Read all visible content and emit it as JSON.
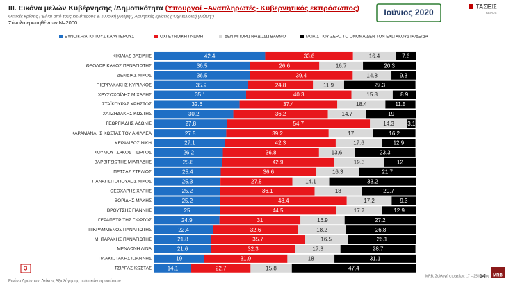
{
  "header": {
    "title": "III. Εικόνα μελών Κυβέρνησης /Δημοτικότητα",
    "title_highlight": "(Υπουργοί –Αναπληρωτές- Κυβερνητικός εκπρόσωπος)",
    "subtitle": "Θετικές κρίσεις (\"Είναι από τους καλύτερους & ευνοϊκή γνώμη\") Αρνητικές κρίσεις (\"Όχι ευνοϊκή γνώμη\")",
    "sample": "Σύνολο ερωτηθέντων N=2000",
    "date": "Ιούνιος 2020",
    "logo": "ΤΑΣΕΙΣ",
    "logo_sub": "TRENDS"
  },
  "footer": {
    "section": "3",
    "caption": "Εικόνα Δρώντων: Δείκτες Αξιολόγησης πολιτικών προσώπων",
    "source": "MRB, Συλλογή στοιχείων: 17 – 25 Ιουνίου 2020",
    "page": "14",
    "brand": "MRB"
  },
  "chart_data": {
    "type": "stacked-bar-horizontal",
    "xlim": [
      0,
      100
    ],
    "categories": [
      "ΚΙΚΙΛΙΑΣ ΒΑΣΙΛΗΣ",
      "ΘΕΟΔΩΡΙΚΑΚΟΣ ΠΑΝΑΓΙΩΤΗΣ",
      "ΔΕΝΔΙΑΣ ΝΙΚΟΣ",
      "ΠΙΕΡΡΑΚΑΚΗΣ ΚΥΡΙΑΚΟΣ",
      "ΧΡΥΣΟΧΟΪΔΗΣ ΜΙΧΑΛΗΣ",
      "ΣΤΑΪΚΟΥΡΑΣ ΧΡΗΣΤΟΣ",
      "ΧΑΤΖΗΔΑΚΗΣ ΚΩΣΤΗΣ",
      "ΓΕΩΡΓΙΑΔΗΣ ΑΔΩΝΙΣ",
      "ΚΑΡΑΜΑΝΛΗΣ ΚΩΣΤΑΣ ΤΟΥ ΑΧΙΛΛΕΑ",
      "ΚΕΡΑΜΕΩΣ ΝΙΚΗ",
      "ΚΟΥΜΟΥΤΣΑΚΟΣ ΓΙΩΡΓΟΣ",
      "ΒΑΡΒΙΤΣΙΩΤΗΣ ΜΙΛΤΙΑΔΗΣ",
      "ΠΕΤΣΑΣ ΣΤΕΛΙΟΣ",
      "ΠΑΝΑΓΙΩΤΟΠΟΥΛΟΣ ΝΙΚΟΣ",
      "ΘΕΟΧΑΡΗΣ ΧΑΡΗΣ",
      "ΒΟΡΙΔΗΣ ΜΑΚΗΣ",
      "ΒΡΟΥΤΣΗΣ ΓΙΑΝΝΗΣ",
      "ΓΕΡΑΠΕΤΡΙΤΗΣ ΓΙΩΡΓΟΣ",
      "ΠΙΚΡΑΜΜΕΝΟΣ ΠΑΝΑΓΙΩΤΗΣ",
      "ΜΗΤΑΡΑΚΗΣ ΠΑΝΑΓΙΩΤΗΣ",
      "ΜΕΝΔΩΝΗ ΛΙΝΑ",
      "ΠΛΑΚΙΩΤΑΚΗΣ ΙΩΑΝΝΗΣ",
      "ΤΣΙΑΡΑΣ ΚΩΣΤΑΣ"
    ],
    "series": [
      {
        "name": "ΕΥΝΟΙΚΗ/ΑΠΟ ΤΟΥΣ ΚΑΛΥΤΕΡΟΥΣ",
        "color": "#1f6fc5",
        "values": [
          42.4,
          36.5,
          36.5,
          35.9,
          35.1,
          32.6,
          30.2,
          27.8,
          27.5,
          27.1,
          26.2,
          25.8,
          25.4,
          25.3,
          25.2,
          25.2,
          25,
          24.9,
          22.4,
          21.8,
          21.6,
          19,
          14.1
        ]
      },
      {
        "name": "ΟΧΙ ΕΥΝΟΙΚΗ ΓΝΩΜΗ",
        "color": "#e8171c",
        "values": [
          33.6,
          26.6,
          39.4,
          24.8,
          40.3,
          37.4,
          36.2,
          54.7,
          39.2,
          42.3,
          36.8,
          42.9,
          36.6,
          27.5,
          36.1,
          48.4,
          44.5,
          31,
          32.6,
          35.7,
          32.3,
          31.9,
          22.7
        ]
      },
      {
        "name": "ΔΕΝ ΜΠΟΡΩ ΝΑ ΔΩΣΩ ΒΑΘΜΟ",
        "color": "#d9d9d9",
        "values": [
          16.4,
          16.7,
          14.8,
          11.9,
          15.8,
          18.4,
          14.7,
          14.3,
          17,
          17.6,
          13.6,
          19.3,
          16.3,
          14.1,
          18,
          17.2,
          17.7,
          16.9,
          18.2,
          16.5,
          17.3,
          18,
          15.8
        ]
      },
      {
        "name": "ΜΟΛΙΣ ΠΟΥ ΞΕΡΩ ΤΟ ΟΝΟΜΑ/ΔΕΝ ΤΟΝ ΕΧΩ ΑΚΟΥΣΤΑ/ΔΞ/ΔΑ",
        "color": "#000000",
        "values": [
          7.6,
          20.3,
          9.3,
          27.3,
          8.9,
          11.5,
          19,
          3.1,
          16.2,
          12.9,
          23.3,
          12,
          21.7,
          33.2,
          20.7,
          9.3,
          12.9,
          27.2,
          26.8,
          26.1,
          28.7,
          31.1,
          47.4
        ]
      }
    ]
  }
}
